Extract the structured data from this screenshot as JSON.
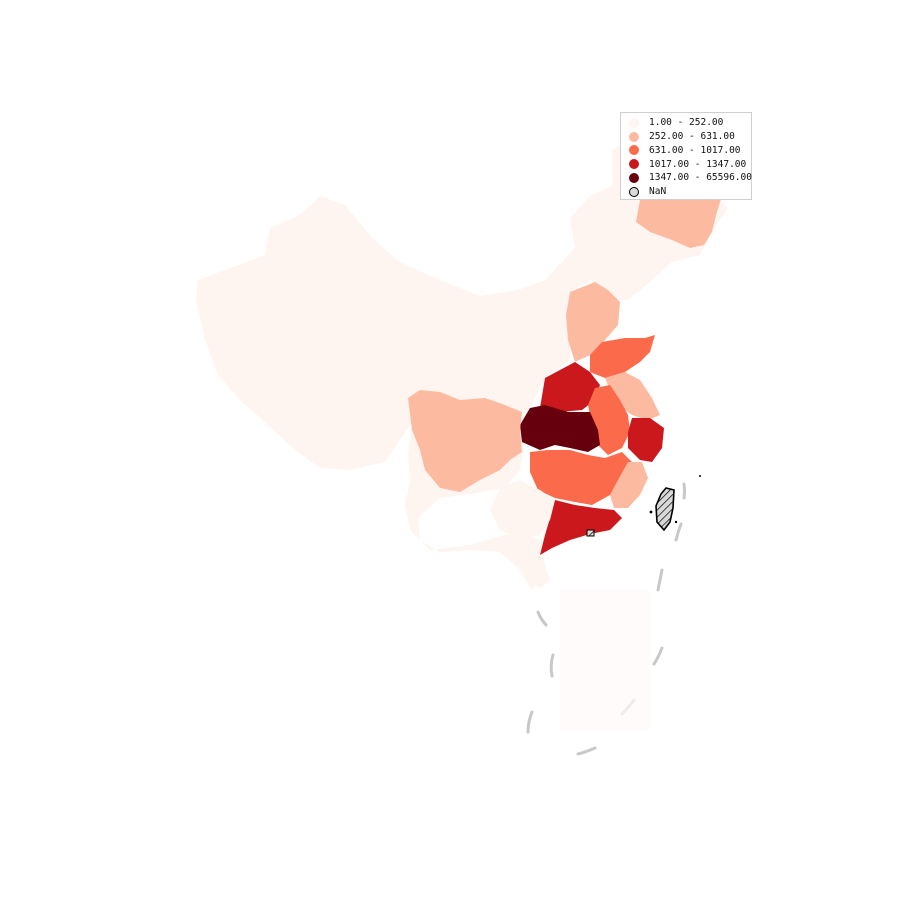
{
  "legend": {
    "items": [
      {
        "label": "1.00 - 252.00",
        "color": "#fff5f0"
      },
      {
        "label": "252.00 - 631.00",
        "color": "#fcbba1"
      },
      {
        "label": "631.00 - 1017.00",
        "color": "#fb6a4a"
      },
      {
        "label": "1017.00 - 1347.00",
        "color": "#cb181d"
      },
      {
        "label": "1347.00 - 65596.00",
        "color": "#67000d"
      },
      {
        "label": "NaN",
        "color": "#d9d9d9",
        "outline": "#000000"
      }
    ]
  },
  "map": {
    "nodata_pattern": "diagonal-hatch",
    "nine_dash_line_color": "#c8c8c8"
  }
}
